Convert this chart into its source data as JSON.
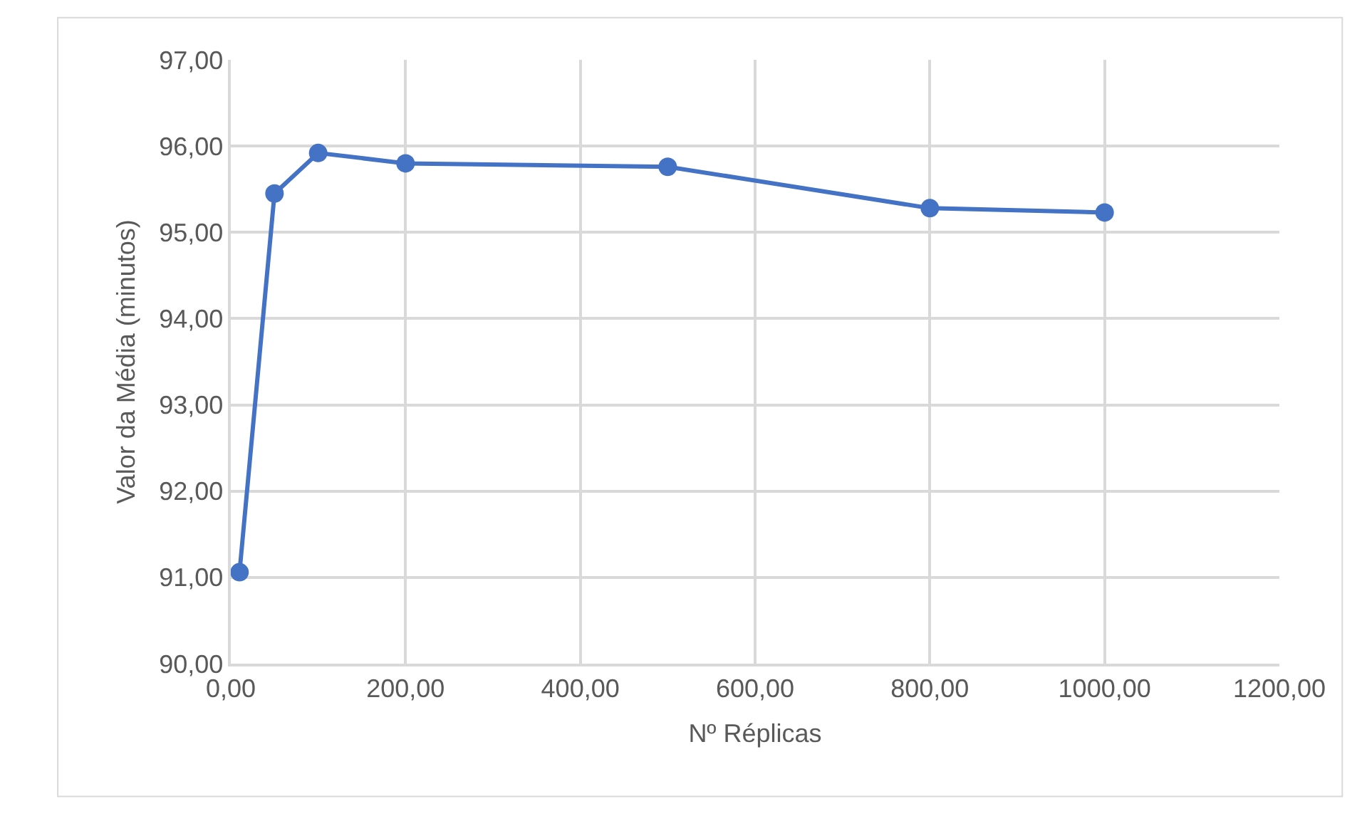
{
  "chart_data": {
    "type": "line",
    "xlabel": "Nº Réplicas",
    "ylabel": "Valor da Média (minutos)",
    "x": [
      10,
      50,
      100,
      200,
      500,
      800,
      1000
    ],
    "series": [
      {
        "color": "#4472c4",
        "values": [
          91.06,
          95.45,
          95.92,
          95.8,
          95.76,
          95.28,
          95.23
        ]
      }
    ],
    "xlim": [
      0,
      1200
    ],
    "xticks": [
      {
        "value": 0,
        "label": "0,00"
      },
      {
        "value": 200,
        "label": "200,00"
      },
      {
        "value": 400,
        "label": "400,00"
      },
      {
        "value": 600,
        "label": "600,00"
      },
      {
        "value": 800,
        "label": "800,00"
      },
      {
        "value": 1000,
        "label": "1000,00"
      },
      {
        "value": 1200,
        "label": "1200,00"
      }
    ],
    "ylim": [
      90,
      97
    ],
    "yticks": [
      {
        "value": 90,
        "label": "90,00"
      },
      {
        "value": 91,
        "label": "91,00"
      },
      {
        "value": 92,
        "label": "92,00"
      },
      {
        "value": 93,
        "label": "93,00"
      },
      {
        "value": 94,
        "label": "94,00"
      },
      {
        "value": 95,
        "label": "95,00"
      },
      {
        "value": 96,
        "label": "96,00"
      },
      {
        "value": 97,
        "label": "97,00"
      }
    ],
    "grid": true,
    "marker": "circle",
    "line_style": "solid"
  }
}
